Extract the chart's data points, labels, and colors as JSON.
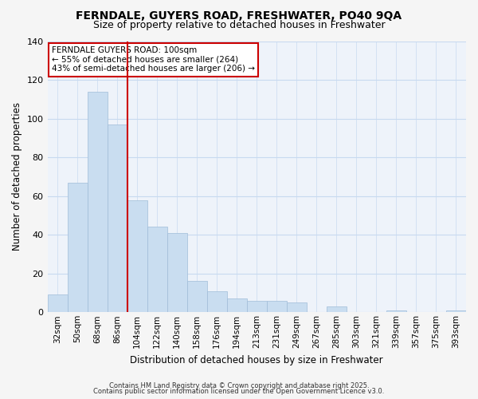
{
  "title1": "FERNDALE, GUYERS ROAD, FRESHWATER, PO40 9QA",
  "title2": "Size of property relative to detached houses in Freshwater",
  "xlabel": "Distribution of detached houses by size in Freshwater",
  "ylabel": "Number of detached properties",
  "categories": [
    "32sqm",
    "50sqm",
    "68sqm",
    "86sqm",
    "104sqm",
    "122sqm",
    "140sqm",
    "158sqm",
    "176sqm",
    "194sqm",
    "213sqm",
    "231sqm",
    "249sqm",
    "267sqm",
    "285sqm",
    "303sqm",
    "321sqm",
    "339sqm",
    "357sqm",
    "375sqm",
    "393sqm"
  ],
  "values": [
    9,
    67,
    114,
    97,
    58,
    44,
    41,
    16,
    11,
    7,
    6,
    6,
    5,
    0,
    3,
    0,
    0,
    1,
    0,
    0,
    1
  ],
  "bar_color": "#c9ddf0",
  "bar_edge_color": "#a0bcd8",
  "vline_color": "#cc0000",
  "annotation_title": "FERNDALE GUYERS ROAD: 100sqm",
  "annotation_line1": "← 55% of detached houses are smaller (264)",
  "annotation_line2": "43% of semi-detached houses are larger (206) →",
  "box_edge_color": "#cc0000",
  "ylim": [
    0,
    140
  ],
  "yticks": [
    0,
    20,
    40,
    60,
    80,
    100,
    120,
    140
  ],
  "footer1": "Contains HM Land Registry data © Crown copyright and database right 2025.",
  "footer2": "Contains public sector information licensed under the Open Government Licence v3.0.",
  "fig_bg_color": "#f5f5f5",
  "plot_bg_color": "#eef3fa",
  "grid_color": "#c8daf0",
  "title_fontsize": 10,
  "subtitle_fontsize": 9
}
